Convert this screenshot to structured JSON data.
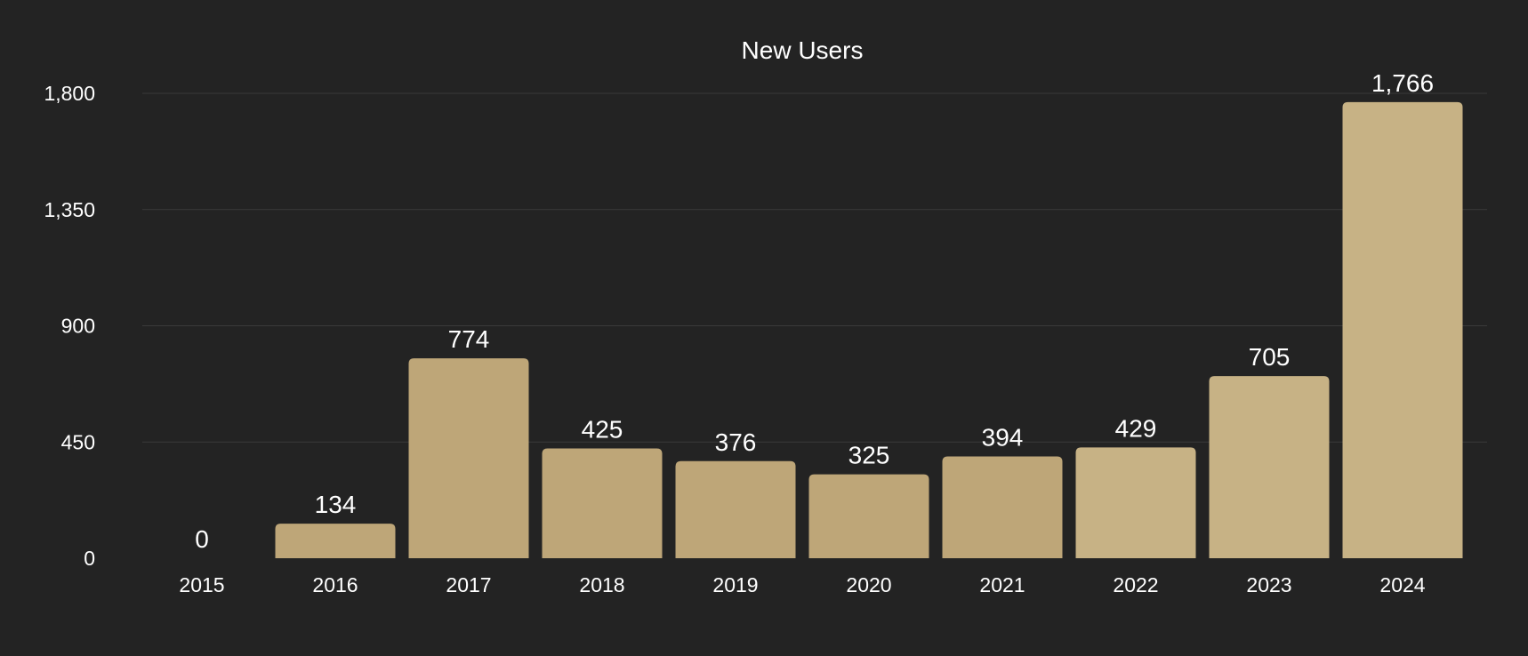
{
  "chart_data": {
    "type": "bar",
    "title": "New Users",
    "xlabel": "",
    "ylabel": "",
    "categories": [
      "2015",
      "2016",
      "2017",
      "2018",
      "2019",
      "2020",
      "2021",
      "2022",
      "2023",
      "2024"
    ],
    "values": [
      0,
      134,
      774,
      425,
      376,
      325,
      394,
      429,
      705,
      1766
    ],
    "value_labels": [
      "0",
      "134",
      "774",
      "425",
      "376",
      "325",
      "394",
      "429",
      "705",
      "1,766"
    ],
    "ylim": [
      0,
      1800
    ],
    "y_ticks": [
      0,
      450,
      900,
      1350,
      1800
    ],
    "y_tick_labels": [
      "0",
      "450",
      "900",
      "1,350",
      "1,800"
    ],
    "grid": true,
    "legend": "none",
    "colors": {
      "background": "#232323",
      "bars": [
        "#bea678",
        "#bea678",
        "#bea678",
        "#bea678",
        "#bea678",
        "#bea678",
        "#bea678",
        "#c7b285",
        "#c7b285",
        "#c7b285"
      ],
      "grid": "#3a3a3a",
      "text": "#ffffff"
    }
  }
}
